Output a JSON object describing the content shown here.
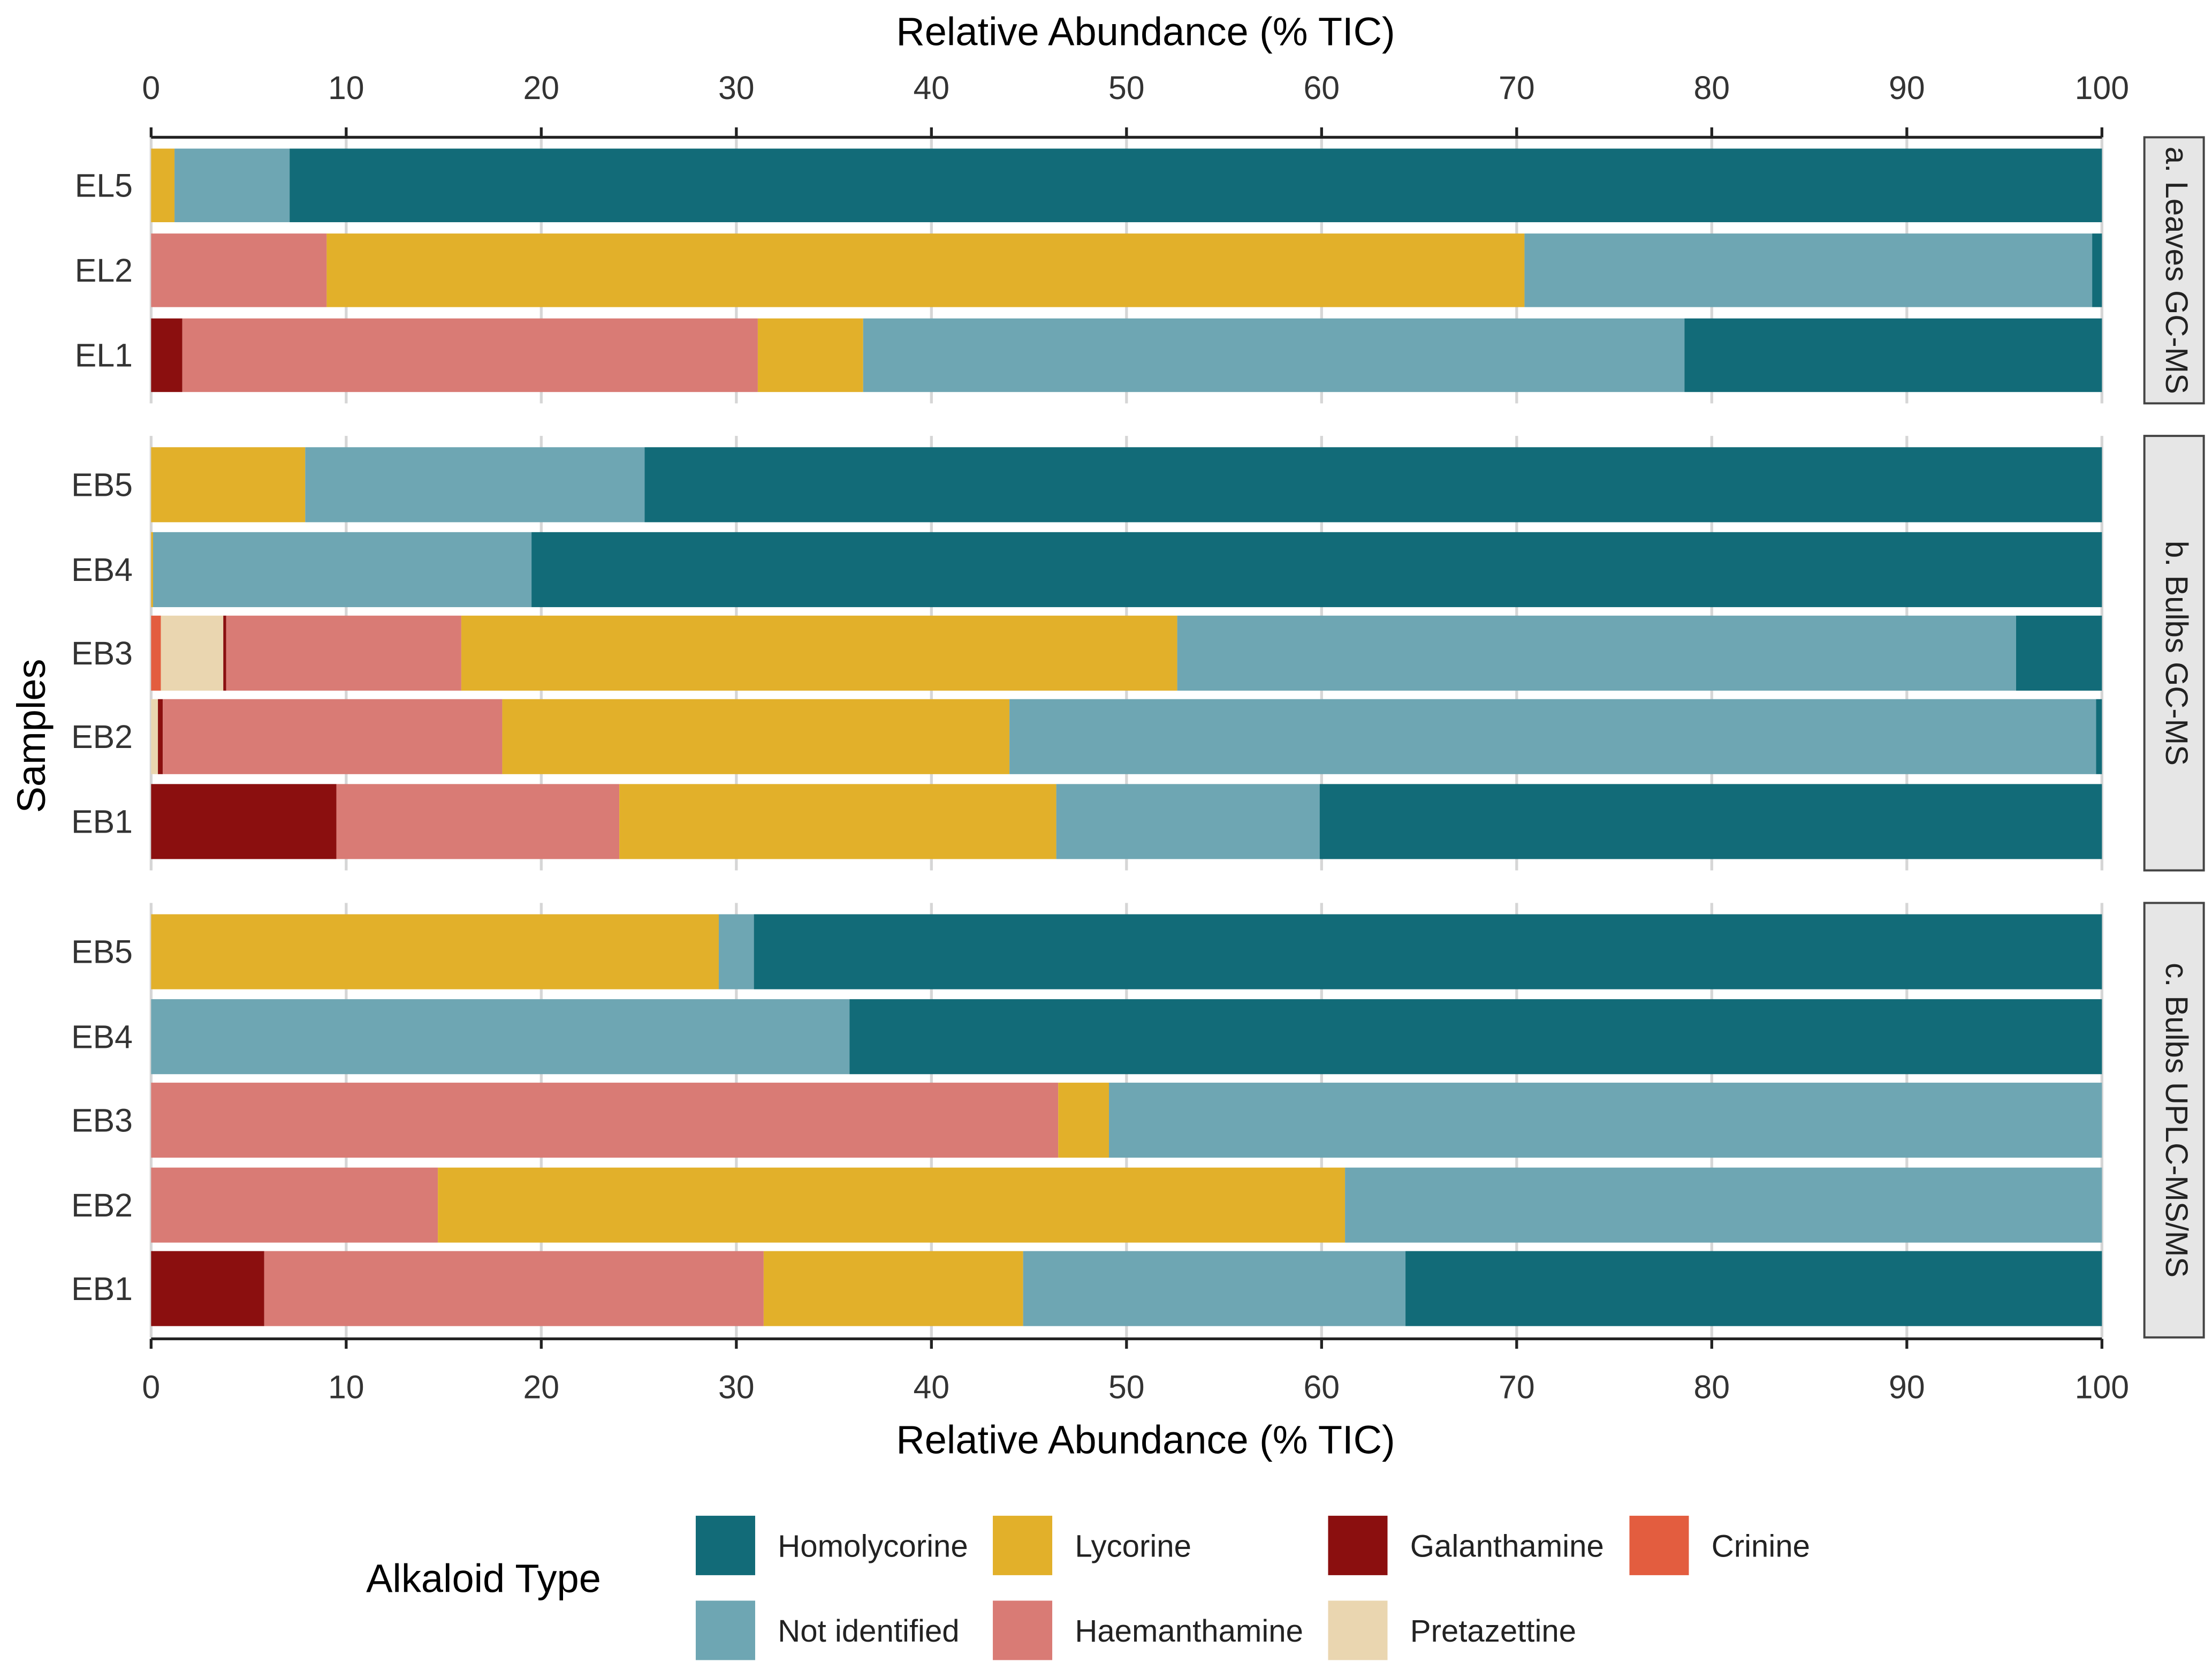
{
  "chart_data": {
    "type": "bar",
    "orientation": "horizontal-stacked",
    "xlabel_top": "Relative Abundance (% TIC)",
    "xlabel": "Relative Abundance (% TIC)",
    "ylabel": "Samples",
    "xlim": [
      0,
      100
    ],
    "xticks": [
      "0",
      "10",
      "20",
      "30",
      "40",
      "50",
      "60",
      "70",
      "80",
      "90",
      "100"
    ],
    "grid": true,
    "legend": {
      "title": "Alkaloid Type",
      "placement": "bottom",
      "entries": [
        {
          "name": "Homolycorine",
          "color": "#126b78"
        },
        {
          "name": "Not identified",
          "color": "#6ea6b3"
        },
        {
          "name": "Lycorine",
          "color": "#e2b02a"
        },
        {
          "name": "Haemanthamine",
          "color": "#d97b75"
        },
        {
          "name": "Galanthamine",
          "color": "#8b0f0f"
        },
        {
          "name": "Pretazettine",
          "color": "#ead6b0"
        },
        {
          "name": "Crinine",
          "color": "#e35d3f"
        }
      ]
    },
    "stack_order": [
      "Crinine",
      "Pretazettine",
      "Galanthamine",
      "Haemanthamine",
      "Lycorine",
      "Not identified",
      "Homolycorine"
    ],
    "panels": [
      {
        "label": "a. Leaves GC-MS",
        "rows": [
          {
            "sample": "EL5",
            "values": {
              "Lycorine": 1.2,
              "Not identified": 5.9,
              "Homolycorine": 92.9
            }
          },
          {
            "sample": "EL2",
            "values": {
              "Haemanthamine": 9.0,
              "Lycorine": 61.4,
              "Not identified": 29.1,
              "Homolycorine": 0.5
            }
          },
          {
            "sample": "EL1",
            "values": {
              "Galanthamine": 1.6,
              "Haemanthamine": 29.5,
              "Lycorine": 5.4,
              "Not identified": 42.1,
              "Homolycorine": 21.4
            }
          }
        ]
      },
      {
        "label": "b. Bulbs GC-MS",
        "rows": [
          {
            "sample": "EB5",
            "values": {
              "Lycorine": 7.9,
              "Not identified": 17.4,
              "Homolycorine": 74.7
            }
          },
          {
            "sample": "EB4",
            "values": {
              "Lycorine": 0.1,
              "Not identified": 19.4,
              "Homolycorine": 80.5
            }
          },
          {
            "sample": "EB3",
            "values": {
              "Crinine": 0.5,
              "Pretazettine": 3.2,
              "Galanthamine": 0.15,
              "Haemanthamine": 12.05,
              "Lycorine": 36.7,
              "Not identified": 43.0,
              "Homolycorine": 4.4
            }
          },
          {
            "sample": "EB2",
            "values": {
              "Pretazettine": 0.35,
              "Galanthamine": 0.25,
              "Haemanthamine": 17.4,
              "Lycorine": 26.0,
              "Not identified": 55.7,
              "Homolycorine": 0.3
            }
          },
          {
            "sample": "EB1",
            "values": {
              "Galanthamine": 9.5,
              "Haemanthamine": 14.5,
              "Lycorine": 22.4,
              "Not identified": 13.5,
              "Homolycorine": 40.1
            }
          }
        ]
      },
      {
        "label": "c. Bulbs UPLC-MS/MS",
        "rows": [
          {
            "sample": "EB5",
            "values": {
              "Lycorine": 29.1,
              "Not identified": 1.8,
              "Homolycorine": 69.1
            }
          },
          {
            "sample": "EB4",
            "values": {
              "Not identified": 35.8,
              "Homolycorine": 64.2
            }
          },
          {
            "sample": "EB3",
            "values": {
              "Haemanthamine": 46.5,
              "Lycorine": 2.6,
              "Not identified": 50.9
            }
          },
          {
            "sample": "EB2",
            "values": {
              "Haemanthamine": 14.7,
              "Lycorine": 46.5,
              "Not identified": 38.8
            }
          },
          {
            "sample": "EB1",
            "values": {
              "Galanthamine": 5.8,
              "Haemanthamine": 25.6,
              "Lycorine": 13.3,
              "Not identified": 19.6,
              "Homolycorine": 35.7
            }
          }
        ]
      }
    ]
  }
}
